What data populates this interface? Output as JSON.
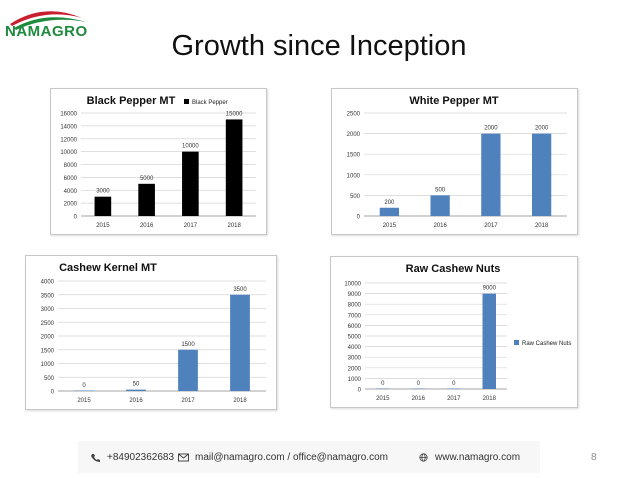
{
  "slide": {
    "title": "Growth since Inception",
    "page_number": "8"
  },
  "logo": {
    "text": "NAMAGRO"
  },
  "footer": {
    "phone": "+84902362683",
    "email": "mail@namagro.com / office@namagro.com",
    "website": "www.namagro.com"
  },
  "colors": {
    "black_bar": "#000000",
    "blue_bar": "#4f81bd",
    "logo_green": "#1e8a3c",
    "logo_red": "#c8202e"
  },
  "chart_data": [
    {
      "type": "bar",
      "title": "Black Pepper MT",
      "categories": [
        "2015",
        "2016",
        "2017",
        "2018"
      ],
      "values": [
        3000,
        5000,
        10000,
        15000
      ],
      "ylim": [
        0,
        16000
      ],
      "yticks": [
        "0",
        "2000",
        "4000",
        "6000",
        "8000",
        "10000",
        "12000",
        "14000",
        "16000"
      ],
      "value_labels": [
        "3000",
        "5000",
        "10000",
        "15000"
      ],
      "legend": "Black Pepper",
      "legend_position": "top-right",
      "color": "#000000",
      "grid": true
    },
    {
      "type": "bar",
      "title": "White Pepper MT",
      "categories": [
        "2015",
        "2016",
        "2017",
        "2018"
      ],
      "values": [
        200,
        500,
        2000,
        2000
      ],
      "ylim": [
        0,
        2500
      ],
      "yticks": [
        "0",
        "500",
        "1000",
        "1500",
        "2000",
        "2500"
      ],
      "value_labels": [
        "200",
        "500",
        "2000",
        "2000"
      ],
      "color": "#4f81bd",
      "grid": true
    },
    {
      "type": "bar",
      "title": "Cashew Kernel MT",
      "categories": [
        "2015",
        "2016",
        "2017",
        "2018"
      ],
      "values": [
        0,
        50,
        1500,
        3500
      ],
      "ylim": [
        0,
        4000
      ],
      "yticks": [
        "0",
        "500",
        "1000",
        "1500",
        "2000",
        "2500",
        "3000",
        "3500",
        "4000"
      ],
      "value_labels": [
        "0",
        "50",
        "1500",
        "3500"
      ],
      "color": "#4f81bd",
      "grid": true
    },
    {
      "type": "bar",
      "title": "Raw Cashew Nuts",
      "categories": [
        "2015",
        "2016",
        "2017",
        "2018"
      ],
      "values": [
        0,
        0,
        0,
        9000
      ],
      "ylim": [
        0,
        10000
      ],
      "yticks": [
        "0",
        "1000",
        "2000",
        "3000",
        "4000",
        "5000",
        "6000",
        "7000",
        "8000",
        "9000",
        "10000"
      ],
      "value_labels": [
        "0",
        "0",
        "0",
        "9000"
      ],
      "legend": "Raw Cashew Nuts",
      "legend_position": "right",
      "color": "#4f81bd",
      "grid": true
    }
  ]
}
